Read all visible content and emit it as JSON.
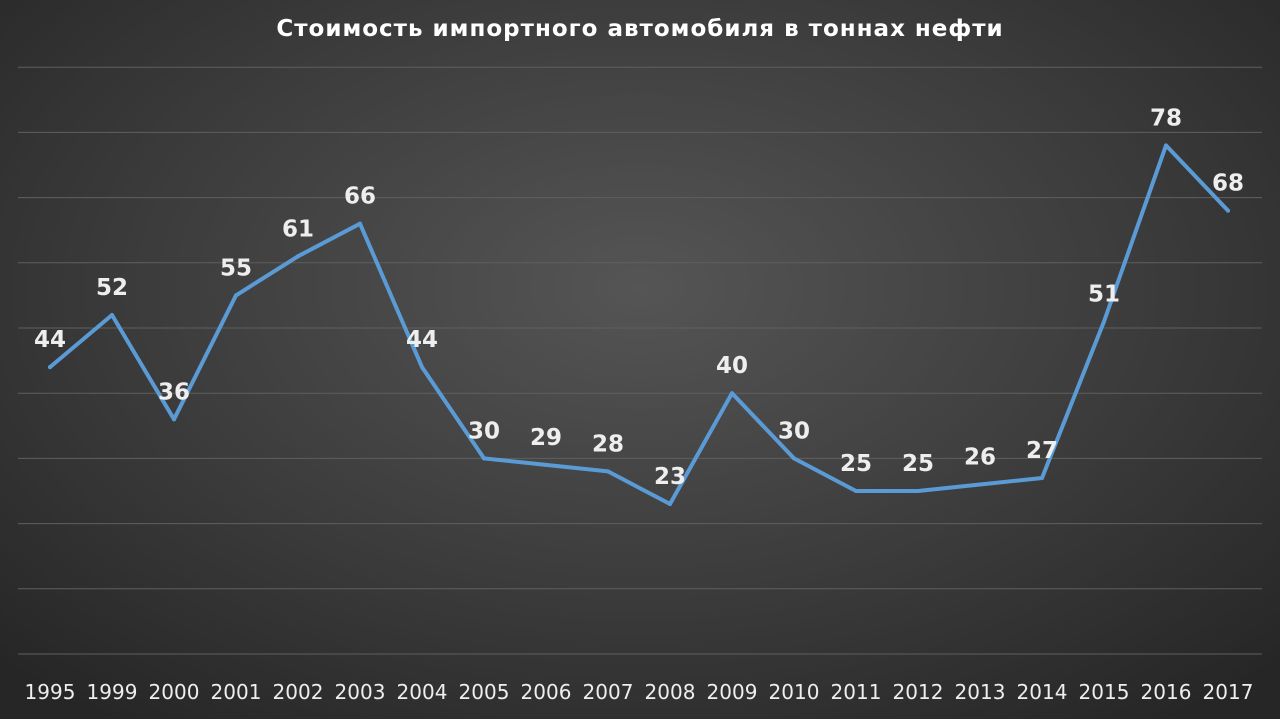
{
  "chart_data": {
    "type": "line",
    "title": "Стоимость импортного автомобиля в тоннах нефти",
    "categories": [
      "1995",
      "1999",
      "2000",
      "2001",
      "2002",
      "2003",
      "2004",
      "2005",
      "2006",
      "2007",
      "2008",
      "2009",
      "2010",
      "2011",
      "2012",
      "2013",
      "2014",
      "2015",
      "2016",
      "2017"
    ],
    "series": [
      {
        "values": [
          44,
          52,
          36,
          55,
          61,
          66,
          44,
          30,
          29,
          28,
          23,
          40,
          30,
          25,
          25,
          26,
          27,
          51,
          78,
          68
        ]
      }
    ],
    "ylim": [
      0,
      90
    ],
    "grid": true,
    "line_color": "#5b9bd5",
    "data_label_color": "#eeeeee",
    "title_color": "#ffffff"
  }
}
